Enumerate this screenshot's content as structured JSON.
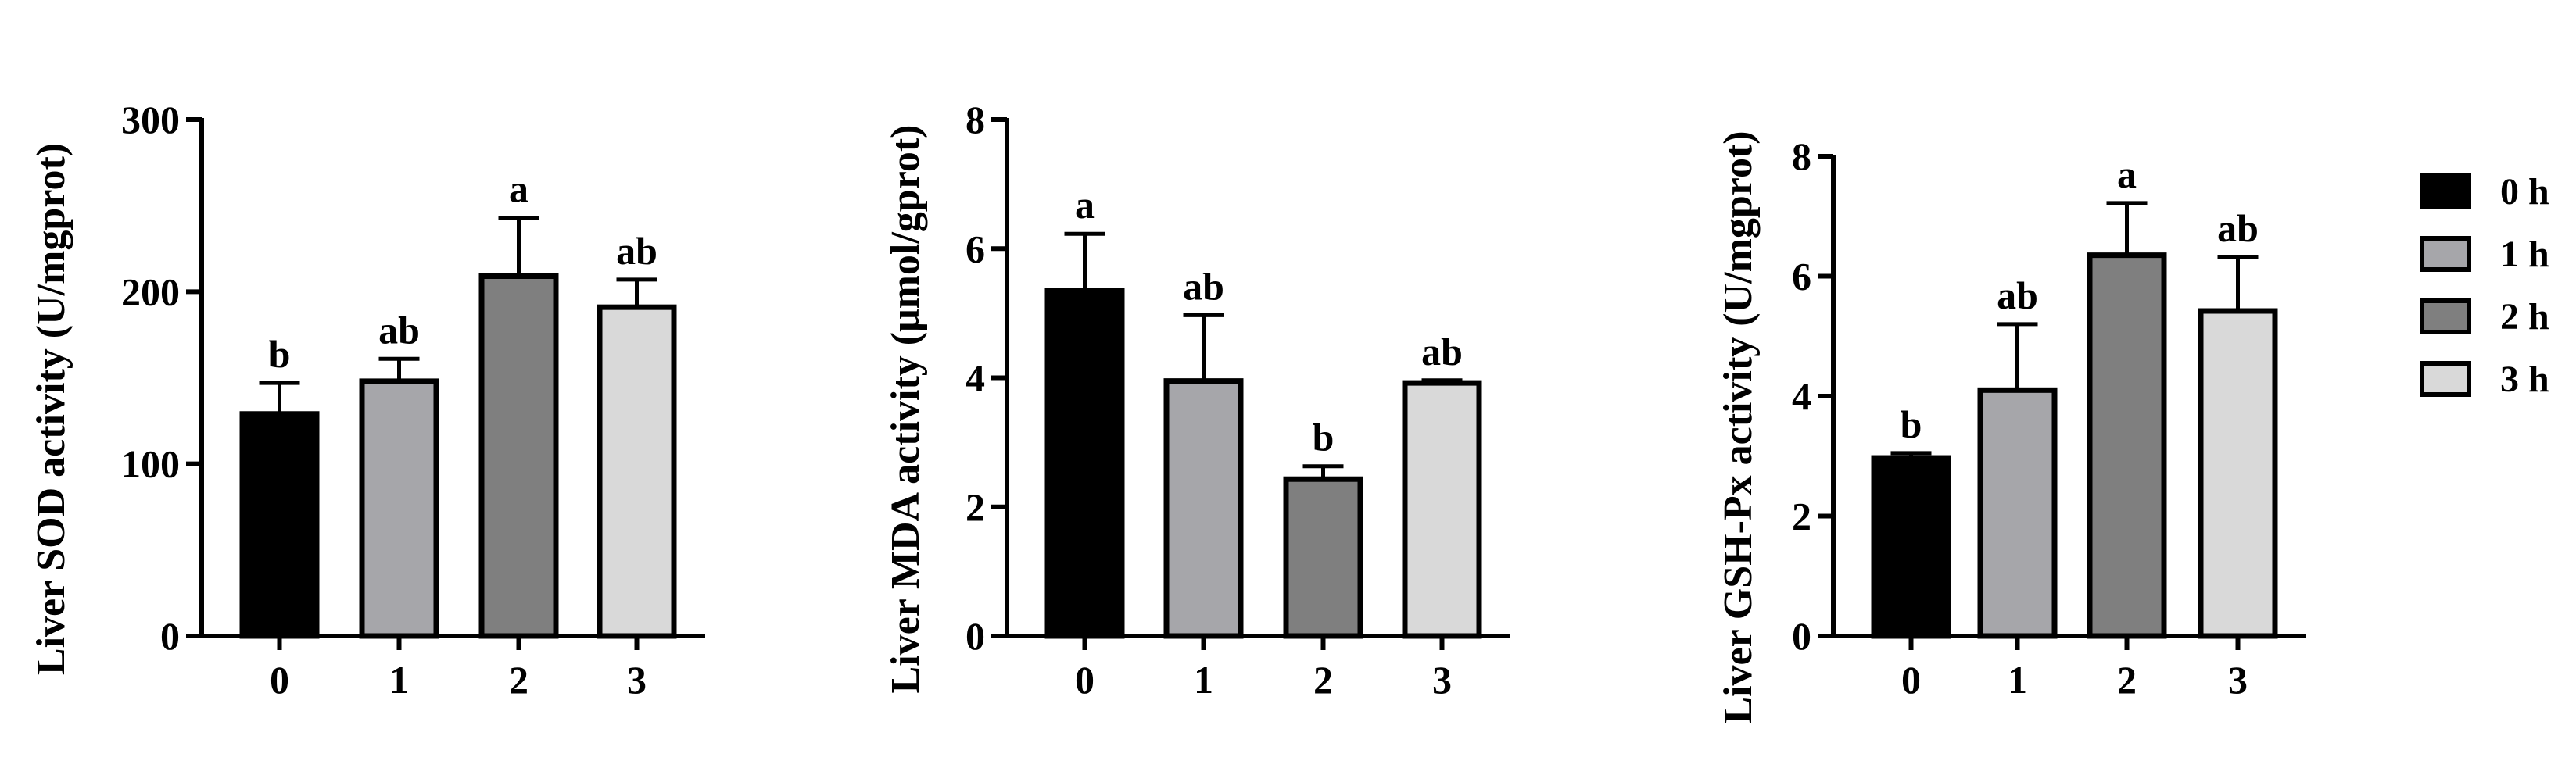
{
  "legend": {
    "position": "right",
    "entries": [
      {
        "label": "0 h",
        "color": "#000000"
      },
      {
        "label": "1 h",
        "color": "#a6a6aa"
      },
      {
        "label": "2 h",
        "color": "#7f7f7f"
      },
      {
        "label": "3 h",
        "color": "#d9d9d9"
      }
    ]
  },
  "chart_data": [
    {
      "type": "bar",
      "title": "",
      "xlabel": "",
      "ylabel": "Liver SOD activity (U/mgprot)",
      "categories": [
        "0",
        "1",
        "2",
        "3"
      ],
      "values": [
        129,
        148,
        209,
        191
      ],
      "errors": [
        18,
        13,
        34,
        16
      ],
      "significance": [
        "b",
        "ab",
        "a",
        "ab"
      ],
      "ylim": [
        0,
        300
      ],
      "yticks": [
        "0",
        "100",
        "200",
        "300"
      ],
      "grid": false
    },
    {
      "type": "bar",
      "title": "",
      "xlabel": "",
      "ylabel": "Liver MDA activity (μmol/gprot)",
      "categories": [
        "0",
        "1",
        "2",
        "3"
      ],
      "values": [
        5.35,
        3.95,
        2.43,
        3.92
      ],
      "errors": [
        0.88,
        1.02,
        0.2,
        0.04
      ],
      "significance": [
        "a",
        "ab",
        "b",
        "ab"
      ],
      "ylim": [
        0,
        8
      ],
      "yticks": [
        "0",
        "2",
        "4",
        "6",
        "8"
      ],
      "grid": false
    },
    {
      "type": "bar",
      "title": "",
      "xlabel": "",
      "ylabel": "Liver GSH-Px activity (U/mgprot)",
      "categories": [
        "0",
        "1",
        "2",
        "3"
      ],
      "values": [
        2.97,
        4.1,
        6.35,
        5.42
      ],
      "errors": [
        0.08,
        1.1,
        0.87,
        0.9
      ],
      "significance": [
        "b",
        "ab",
        "a",
        "ab"
      ],
      "ylim": [
        0,
        8
      ],
      "yticks": [
        "0",
        "2",
        "4",
        "6",
        "8"
      ],
      "grid": false
    }
  ]
}
